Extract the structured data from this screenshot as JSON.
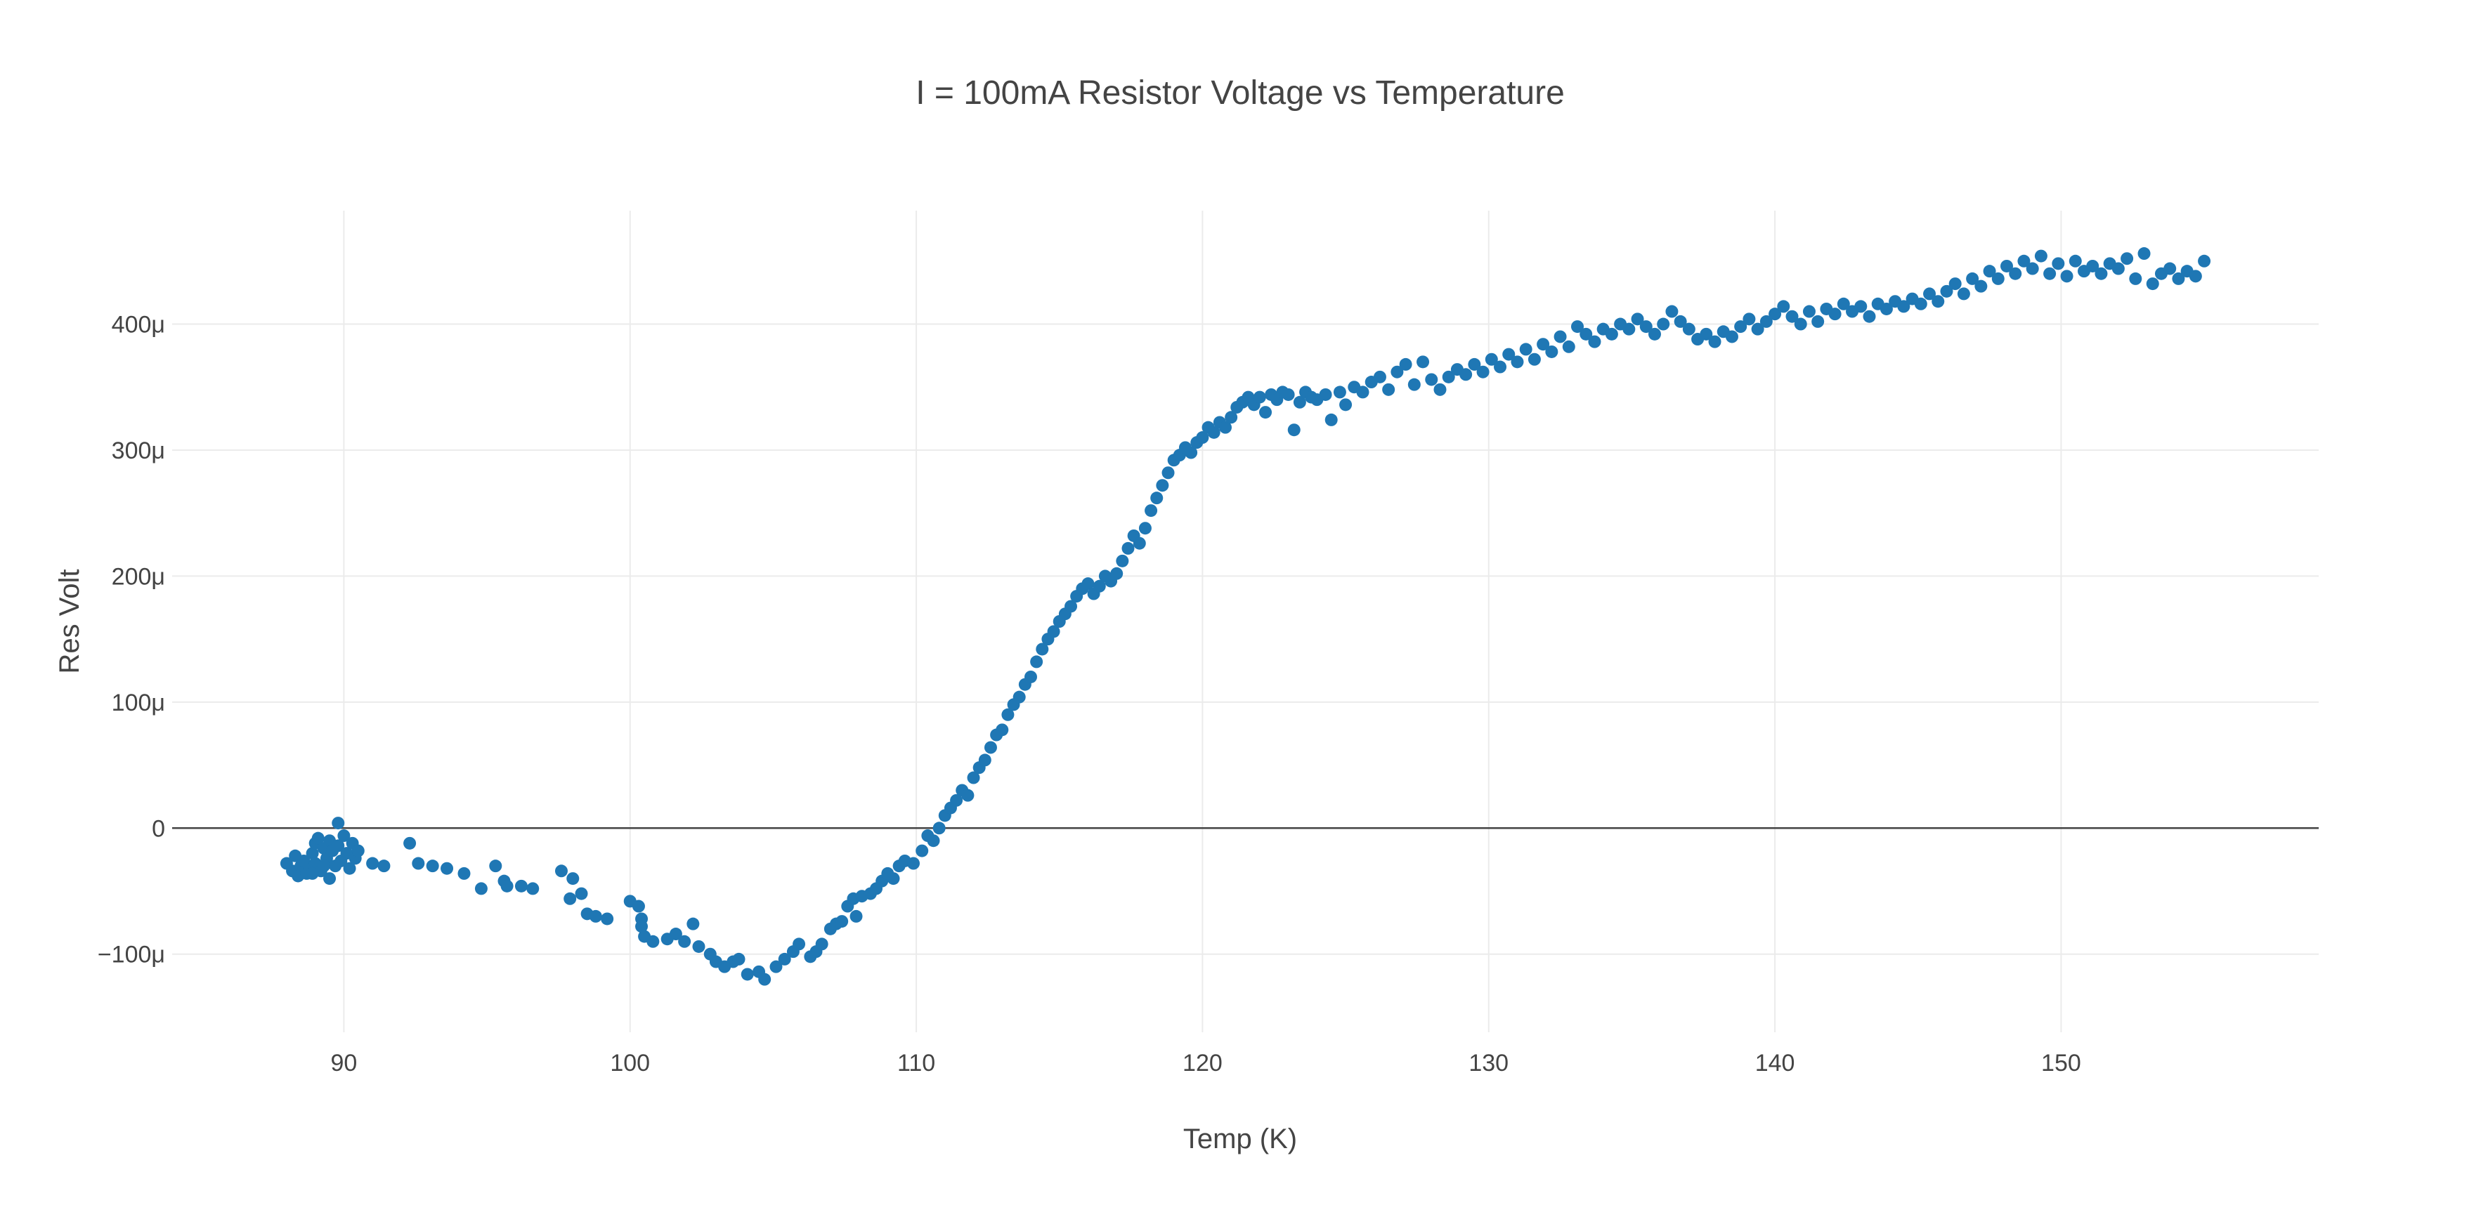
{
  "chart_data": {
    "type": "scatter",
    "title": "I = 100mA Resistor Voltage vs Temperature",
    "xlabel": "Temp (K)",
    "ylabel": "Res Volt",
    "xlim": [
      84,
      159
    ],
    "ylim": [
      -0.000162,
      0.00049
    ],
    "x_ticks": [
      90,
      100,
      110,
      120,
      130,
      140,
      150
    ],
    "x_tick_labels": [
      "90",
      "100",
      "110",
      "120",
      "130",
      "140",
      "150"
    ],
    "y_ticks": [
      -0.0001,
      0,
      0.0001,
      0.0002,
      0.0003,
      0.0004
    ],
    "y_tick_labels": [
      "−100μ",
      "0",
      "100μ",
      "200μ",
      "300μ",
      "400μ"
    ],
    "grid": true,
    "legend": "none",
    "marker_color": "#1f77b4",
    "series": [
      {
        "points": [
          [
            88.0,
            -2.8e-05
          ],
          [
            88.2,
            -3.4e-05
          ],
          [
            88.3,
            -2.2e-05
          ],
          [
            88.4,
            -3.8e-05
          ],
          [
            88.5,
            -3e-05
          ],
          [
            88.6,
            -2.6e-05
          ],
          [
            88.7,
            -3.6e-05
          ],
          [
            88.8,
            -3.2e-05
          ],
          [
            88.9,
            -2e-05
          ],
          [
            89.0,
            -1.2e-05
          ],
          [
            89.0,
            -2.8e-05
          ],
          [
            89.1,
            -8e-06
          ],
          [
            89.2,
            -3.4e-05
          ],
          [
            89.3,
            -1.6e-05
          ],
          [
            89.4,
            -2.4e-05
          ],
          [
            89.5,
            -4e-05
          ],
          [
            89.5,
            -1e-05
          ],
          [
            89.6,
            -1.8e-05
          ],
          [
            89.7,
            -3e-05
          ],
          [
            89.8,
            4e-06
          ],
          [
            89.8,
            -1.4e-05
          ],
          [
            89.9,
            -2.6e-05
          ],
          [
            90.0,
            -6e-06
          ],
          [
            90.1,
            -2e-05
          ],
          [
            90.2,
            -3.2e-05
          ],
          [
            90.3,
            -1.2e-05
          ],
          [
            90.4,
            -2.4e-05
          ],
          [
            90.5,
            -1.8e-05
          ],
          [
            88.9,
            -3.6e-05
          ],
          [
            89.3,
            -3e-05
          ],
          [
            91.0,
            -2.8e-05
          ],
          [
            91.4,
            -3e-05
          ],
          [
            92.3,
            -1.2e-05
          ],
          [
            92.6,
            -2.8e-05
          ],
          [
            93.1,
            -3e-05
          ],
          [
            93.6,
            -3.2e-05
          ],
          [
            94.2,
            -3.6e-05
          ],
          [
            94.8,
            -4.8e-05
          ],
          [
            95.3,
            -3e-05
          ],
          [
            95.6,
            -4.2e-05
          ],
          [
            95.7,
            -4.6e-05
          ],
          [
            96.2,
            -4.6e-05
          ],
          [
            96.6,
            -4.8e-05
          ],
          [
            97.6,
            -3.4e-05
          ],
          [
            97.9,
            -5.6e-05
          ],
          [
            98.0,
            -4e-05
          ],
          [
            98.3,
            -5.2e-05
          ],
          [
            98.5,
            -6.8e-05
          ],
          [
            98.8,
            -7e-05
          ],
          [
            99.2,
            -7.2e-05
          ],
          [
            100.0,
            -5.8e-05
          ],
          [
            100.3,
            -6.2e-05
          ],
          [
            100.4,
            -7.2e-05
          ],
          [
            100.4,
            -7.8e-05
          ],
          [
            100.5,
            -8.6e-05
          ],
          [
            100.8,
            -9e-05
          ],
          [
            101.3,
            -8.8e-05
          ],
          [
            101.6,
            -8.4e-05
          ],
          [
            101.9,
            -9e-05
          ],
          [
            102.2,
            -7.6e-05
          ],
          [
            102.4,
            -9.4e-05
          ],
          [
            102.8,
            -0.0001
          ],
          [
            103.0,
            -0.000106
          ],
          [
            103.3,
            -0.00011
          ],
          [
            103.6,
            -0.000106
          ],
          [
            103.8,
            -0.000104
          ],
          [
            104.1,
            -0.000116
          ],
          [
            104.5,
            -0.000114
          ],
          [
            104.7,
            -0.00012
          ],
          [
            105.1,
            -0.00011
          ],
          [
            105.4,
            -0.000104
          ],
          [
            105.7,
            -9.8e-05
          ],
          [
            105.9,
            -9.2e-05
          ],
          [
            106.3,
            -0.000102
          ],
          [
            106.5,
            -9.8e-05
          ],
          [
            106.7,
            -9.2e-05
          ],
          [
            107.0,
            -8e-05
          ],
          [
            107.2,
            -7.6e-05
          ],
          [
            107.4,
            -7.4e-05
          ],
          [
            107.6,
            -6.2e-05
          ],
          [
            107.8,
            -5.6e-05
          ],
          [
            107.9,
            -7e-05
          ],
          [
            108.1,
            -5.4e-05
          ],
          [
            108.4,
            -5.2e-05
          ],
          [
            108.6,
            -4.8e-05
          ],
          [
            108.8,
            -4.2e-05
          ],
          [
            109.0,
            -3.6e-05
          ],
          [
            109.2,
            -4e-05
          ],
          [
            109.4,
            -3e-05
          ],
          [
            109.6,
            -2.6e-05
          ],
          [
            109.9,
            -2.8e-05
          ],
          [
            110.2,
            -1.8e-05
          ],
          [
            110.4,
            -6e-06
          ],
          [
            110.6,
            -1e-05
          ],
          [
            110.8,
            0.0
          ],
          [
            111.0,
            1e-05
          ],
          [
            111.2,
            1.6e-05
          ],
          [
            111.4,
            2.2e-05
          ],
          [
            111.6,
            3e-05
          ],
          [
            111.8,
            2.6e-05
          ],
          [
            112.0,
            4e-05
          ],
          [
            112.2,
            4.8e-05
          ],
          [
            112.4,
            5.4e-05
          ],
          [
            112.6,
            6.4e-05
          ],
          [
            112.8,
            7.4e-05
          ],
          [
            113.0,
            7.8e-05
          ],
          [
            113.2,
            9e-05
          ],
          [
            113.4,
            9.8e-05
          ],
          [
            113.6,
            0.000104
          ],
          [
            113.8,
            0.000114
          ],
          [
            114.0,
            0.00012
          ],
          [
            114.2,
            0.000132
          ],
          [
            114.4,
            0.000142
          ],
          [
            114.6,
            0.00015
          ],
          [
            114.8,
            0.000156
          ],
          [
            115.0,
            0.000164
          ],
          [
            115.2,
            0.00017
          ],
          [
            115.4,
            0.000176
          ],
          [
            115.6,
            0.000184
          ],
          [
            115.8,
            0.00019
          ],
          [
            116.0,
            0.000194
          ],
          [
            116.2,
            0.000186
          ],
          [
            116.4,
            0.000192
          ],
          [
            116.6,
            0.0002
          ],
          [
            116.8,
            0.000196
          ],
          [
            117.0,
            0.000202
          ],
          [
            117.2,
            0.000212
          ],
          [
            117.4,
            0.000222
          ],
          [
            117.6,
            0.000232
          ],
          [
            117.8,
            0.000226
          ],
          [
            118.0,
            0.000238
          ],
          [
            118.2,
            0.000252
          ],
          [
            118.4,
            0.000262
          ],
          [
            118.6,
            0.000272
          ],
          [
            118.8,
            0.000282
          ],
          [
            119.0,
            0.000292
          ],
          [
            119.2,
            0.000296
          ],
          [
            119.4,
            0.000302
          ],
          [
            119.6,
            0.000298
          ],
          [
            119.8,
            0.000306
          ],
          [
            120.0,
            0.00031
          ],
          [
            120.2,
            0.000318
          ],
          [
            120.4,
            0.000314
          ],
          [
            120.6,
            0.000322
          ],
          [
            120.8,
            0.000318
          ],
          [
            121.0,
            0.000326
          ],
          [
            121.2,
            0.000334
          ],
          [
            121.4,
            0.000338
          ],
          [
            121.6,
            0.000342
          ],
          [
            121.8,
            0.000336
          ],
          [
            122.0,
            0.000342
          ],
          [
            122.2,
            0.00033
          ],
          [
            122.4,
            0.000344
          ],
          [
            122.6,
            0.00034
          ],
          [
            122.8,
            0.000346
          ],
          [
            123.0,
            0.000344
          ],
          [
            123.2,
            0.000316
          ],
          [
            123.4,
            0.000338
          ],
          [
            123.6,
            0.000346
          ],
          [
            123.8,
            0.000342
          ],
          [
            124.0,
            0.00034
          ],
          [
            124.3,
            0.000344
          ],
          [
            124.5,
            0.000324
          ],
          [
            124.8,
            0.000346
          ],
          [
            125.0,
            0.000336
          ],
          [
            125.3,
            0.00035
          ],
          [
            125.6,
            0.000346
          ],
          [
            125.9,
            0.000354
          ],
          [
            126.2,
            0.000358
          ],
          [
            126.5,
            0.000348
          ],
          [
            126.8,
            0.000362
          ],
          [
            127.1,
            0.000368
          ],
          [
            127.4,
            0.000352
          ],
          [
            127.7,
            0.00037
          ],
          [
            128.0,
            0.000356
          ],
          [
            128.3,
            0.000348
          ],
          [
            128.6,
            0.000358
          ],
          [
            128.9,
            0.000364
          ],
          [
            129.2,
            0.00036
          ],
          [
            129.5,
            0.000368
          ],
          [
            129.8,
            0.000362
          ],
          [
            130.1,
            0.000372
          ],
          [
            130.4,
            0.000366
          ],
          [
            130.7,
            0.000376
          ],
          [
            131.0,
            0.00037
          ],
          [
            131.3,
            0.00038
          ],
          [
            131.6,
            0.000372
          ],
          [
            131.9,
            0.000384
          ],
          [
            132.2,
            0.000378
          ],
          [
            132.5,
            0.00039
          ],
          [
            132.8,
            0.000382
          ],
          [
            133.1,
            0.000398
          ],
          [
            133.4,
            0.000392
          ],
          [
            133.7,
            0.000386
          ],
          [
            134.0,
            0.000396
          ],
          [
            134.3,
            0.000392
          ],
          [
            134.6,
            0.0004
          ],
          [
            134.9,
            0.000396
          ],
          [
            135.2,
            0.000404
          ],
          [
            135.5,
            0.000398
          ],
          [
            135.8,
            0.000392
          ],
          [
            136.1,
            0.0004
          ],
          [
            136.4,
            0.00041
          ],
          [
            136.7,
            0.000402
          ],
          [
            137.0,
            0.000396
          ],
          [
            137.3,
            0.000388
          ],
          [
            137.6,
            0.000392
          ],
          [
            137.9,
            0.000386
          ],
          [
            138.2,
            0.000394
          ],
          [
            138.5,
            0.00039
          ],
          [
            138.8,
            0.000398
          ],
          [
            139.1,
            0.000404
          ],
          [
            139.4,
            0.000396
          ],
          [
            139.7,
            0.000402
          ],
          [
            140.0,
            0.000408
          ],
          [
            140.3,
            0.000414
          ],
          [
            140.6,
            0.000406
          ],
          [
            140.9,
            0.0004
          ],
          [
            141.2,
            0.00041
          ],
          [
            141.5,
            0.000402
          ],
          [
            141.8,
            0.000412
          ],
          [
            142.1,
            0.000408
          ],
          [
            142.4,
            0.000416
          ],
          [
            142.7,
            0.00041
          ],
          [
            143.0,
            0.000414
          ],
          [
            143.3,
            0.000406
          ],
          [
            143.6,
            0.000416
          ],
          [
            143.9,
            0.000412
          ],
          [
            144.2,
            0.000418
          ],
          [
            144.5,
            0.000414
          ],
          [
            144.8,
            0.00042
          ],
          [
            145.1,
            0.000416
          ],
          [
            145.4,
            0.000424
          ],
          [
            145.7,
            0.000418
          ],
          [
            146.0,
            0.000426
          ],
          [
            146.3,
            0.000432
          ],
          [
            146.6,
            0.000424
          ],
          [
            146.9,
            0.000436
          ],
          [
            147.2,
            0.00043
          ],
          [
            147.5,
            0.000442
          ],
          [
            147.8,
            0.000436
          ],
          [
            148.1,
            0.000446
          ],
          [
            148.4,
            0.00044
          ],
          [
            148.7,
            0.00045
          ],
          [
            149.0,
            0.000444
          ],
          [
            149.3,
            0.000454
          ],
          [
            149.6,
            0.00044
          ],
          [
            149.9,
            0.000448
          ],
          [
            150.2,
            0.000438
          ],
          [
            150.5,
            0.00045
          ],
          [
            150.8,
            0.000442
          ],
          [
            151.1,
            0.000446
          ],
          [
            151.4,
            0.00044
          ],
          [
            151.7,
            0.000448
          ],
          [
            152.0,
            0.000444
          ],
          [
            152.3,
            0.000452
          ],
          [
            152.6,
            0.000436
          ],
          [
            152.9,
            0.000456
          ],
          [
            153.2,
            0.000432
          ],
          [
            153.5,
            0.00044
          ],
          [
            153.8,
            0.000444
          ],
          [
            154.1,
            0.000436
          ],
          [
            154.4,
            0.000442
          ],
          [
            154.7,
            0.000438
          ],
          [
            155.0,
            0.00045
          ]
        ]
      }
    ]
  }
}
